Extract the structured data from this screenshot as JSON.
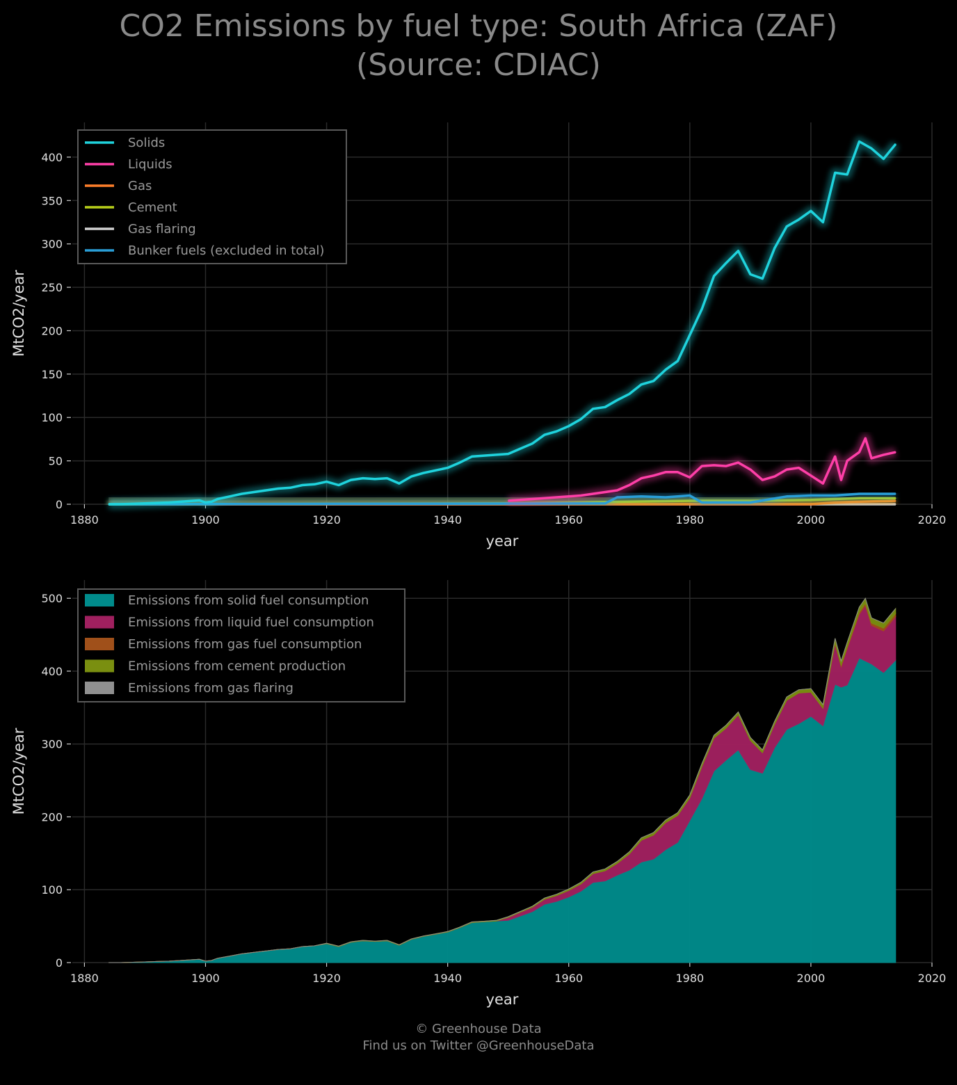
{
  "title": {
    "line1": "CO2 Emissions by fuel type: South Africa (ZAF)",
    "line2": "(Source: CDIAC)"
  },
  "footer": {
    "line1": "© Greenhouse Data",
    "line2": "Find us on Twitter @GreenhouseData"
  },
  "chart_data": [
    {
      "type": "line",
      "xlabel": "year",
      "ylabel": "MtCO2/year",
      "xlim": [
        1878,
        2020
      ],
      "ylim": [
        0,
        440
      ],
      "xticks": [
        1880,
        1900,
        1920,
        1940,
        1960,
        1980,
        2000,
        2020
      ],
      "yticks": [
        0,
        50,
        100,
        150,
        200,
        250,
        300,
        350,
        400
      ],
      "grid": true,
      "legend_position": "top-left",
      "colors": {
        "Solids": "#1fd3dd",
        "Liquids": "#ff3fa8",
        "Gas": "#ff7f2a",
        "Cement": "#b8cf1a",
        "Gas flaring": "#d0d0d0",
        "Bunker fuels (excluded in total)": "#2a9fd8"
      },
      "series": [
        {
          "name": "Solids",
          "x": [
            1884,
            1886,
            1888,
            1890,
            1892,
            1894,
            1896,
            1898,
            1899,
            1900,
            1901,
            1902,
            1904,
            1906,
            1908,
            1910,
            1912,
            1914,
            1916,
            1918,
            1920,
            1922,
            1924,
            1926,
            1928,
            1930,
            1932,
            1934,
            1936,
            1938,
            1940,
            1942,
            1944,
            1946,
            1948,
            1950,
            1952,
            1954,
            1956,
            1958,
            1960,
            1962,
            1964,
            1966,
            1968,
            1970,
            1972,
            1974,
            1976,
            1978,
            1980,
            1982,
            1984,
            1986,
            1988,
            1990,
            1992,
            1994,
            1996,
            1998,
            2000,
            2002,
            2004,
            2006,
            2008,
            2010,
            2012,
            2014
          ],
          "y": [
            0,
            0,
            0.5,
            1,
            1.5,
            2,
            3,
            4,
            4.5,
            2,
            3,
            6,
            9,
            12,
            14,
            16,
            18,
            19,
            22,
            23,
            26,
            22,
            28,
            30,
            29,
            30,
            24,
            32,
            36,
            39,
            42,
            48,
            55,
            56,
            57,
            58,
            64,
            70,
            80,
            84,
            90,
            98,
            110,
            112,
            120,
            127,
            138,
            142,
            155,
            165,
            195,
            225,
            263,
            278,
            292,
            265,
            260,
            295,
            320,
            328,
            338,
            325,
            382,
            380,
            418,
            410,
            398,
            415
          ]
        },
        {
          "name": "Liquids",
          "x": [
            1950,
            1954,
            1958,
            1962,
            1966,
            1968,
            1970,
            1972,
            1974,
            1976,
            1978,
            1980,
            1982,
            1984,
            1986,
            1988,
            1990,
            1992,
            1994,
            1996,
            1998,
            2000,
            2002,
            2004,
            2005,
            2006,
            2008,
            2009,
            2010,
            2012,
            2014
          ],
          "y": [
            4,
            6,
            8,
            10,
            14,
            16,
            22,
            30,
            33,
            37,
            37,
            31,
            44,
            45,
            44,
            48,
            40,
            28,
            32,
            40,
            42,
            33,
            24,
            55,
            28,
            50,
            60,
            76,
            53,
            57,
            60
          ]
        },
        {
          "name": "Gas",
          "x": [
            1884,
            1990,
            1992,
            2000,
            2004,
            2008,
            2014
          ],
          "y": [
            0,
            0,
            0,
            0,
            2,
            3,
            4
          ]
        },
        {
          "name": "Cement",
          "x": [
            1884,
            1920,
            1950,
            1970,
            1980,
            1990,
            2000,
            2008,
            2014
          ],
          "y": [
            0,
            0.5,
            1,
            3,
            4,
            4,
            5,
            7,
            7
          ]
        },
        {
          "name": "Gas flaring",
          "x": [
            1884,
            2014
          ],
          "y": [
            0,
            0
          ]
        },
        {
          "name": "Bunker fuels (excluded in total)",
          "x": [
            1884,
            1966,
            1968,
            1972,
            1976,
            1980,
            1982,
            1990,
            1996,
            2000,
            2004,
            2008,
            2012,
            2014
          ],
          "y": [
            0,
            1,
            8,
            9,
            8,
            10,
            2,
            2,
            9,
            10,
            10,
            12,
            12,
            12
          ]
        }
      ]
    },
    {
      "type": "area",
      "xlabel": "year",
      "ylabel": "MtCO2/year",
      "xlim": [
        1878,
        2020
      ],
      "ylim": [
        0,
        525
      ],
      "xticks": [
        1880,
        1900,
        1920,
        1940,
        1960,
        1980,
        2000,
        2020
      ],
      "yticks": [
        0,
        100,
        200,
        300,
        400,
        500
      ],
      "grid": true,
      "stacked": true,
      "legend_position": "top-left",
      "colors": {
        "Emissions from solid fuel consumption": "#008b8b",
        "Emissions from liquid fuel consumption": "#a0205f",
        "Emissions from gas fuel consumption": "#a0501a",
        "Emissions from cement production": "#7a8f10",
        "Emissions from gas flaring": "#909090"
      },
      "x": [
        1884,
        1886,
        1888,
        1890,
        1892,
        1894,
        1896,
        1898,
        1899,
        1900,
        1901,
        1902,
        1904,
        1906,
        1908,
        1910,
        1912,
        1914,
        1916,
        1918,
        1920,
        1922,
        1924,
        1926,
        1928,
        1930,
        1932,
        1934,
        1936,
        1938,
        1940,
        1942,
        1944,
        1946,
        1948,
        1950,
        1952,
        1954,
        1956,
        1958,
        1960,
        1962,
        1964,
        1966,
        1968,
        1970,
        1972,
        1974,
        1976,
        1978,
        1980,
        1982,
        1984,
        1986,
        1988,
        1990,
        1992,
        1994,
        1996,
        1998,
        2000,
        2002,
        2004,
        2005,
        2006,
        2008,
        2009,
        2010,
        2012,
        2014
      ],
      "series": [
        {
          "name": "Emissions from solid fuel consumption",
          "values": [
            0,
            0,
            0.5,
            1,
            1.5,
            2,
            3,
            4,
            4.5,
            2,
            3,
            6,
            9,
            12,
            14,
            16,
            18,
            19,
            22,
            23,
            26,
            22,
            28,
            30,
            29,
            30,
            24,
            32,
            36,
            39,
            42,
            48,
            55,
            56,
            57,
            58,
            64,
            70,
            80,
            84,
            90,
            98,
            110,
            112,
            120,
            127,
            138,
            142,
            155,
            165,
            195,
            225,
            263,
            278,
            292,
            265,
            260,
            295,
            320,
            328,
            338,
            325,
            382,
            378,
            381,
            418,
            414,
            410,
            398,
            415
          ]
        },
        {
          "name": "Emissions from liquid fuel consumption",
          "values": [
            0,
            0,
            0,
            0,
            0,
            0,
            0,
            0,
            0,
            0,
            0,
            0,
            0,
            0,
            0,
            0,
            0,
            0,
            0,
            0,
            0,
            0,
            0,
            0,
            0,
            0,
            0,
            0,
            0,
            0,
            0,
            0,
            0,
            0,
            0,
            4,
            5,
            6,
            7,
            8,
            9,
            10,
            12,
            14,
            16,
            22,
            30,
            33,
            37,
            37,
            31,
            44,
            45,
            44,
            48,
            40,
            28,
            32,
            40,
            42,
            33,
            24,
            55,
            28,
            50,
            60,
            76,
            53,
            57,
            60
          ]
        },
        {
          "name": "Emissions from gas fuel consumption",
          "values": [
            0,
            0,
            0,
            0,
            0,
            0,
            0,
            0,
            0,
            0,
            0,
            0,
            0,
            0,
            0,
            0,
            0,
            0,
            0,
            0,
            0,
            0,
            0,
            0,
            0,
            0,
            0,
            0,
            0,
            0,
            0,
            0,
            0,
            0,
            0,
            0,
            0,
            0,
            0,
            0,
            0,
            0,
            0,
            0,
            0,
            0,
            0,
            0,
            0,
            0,
            0,
            0,
            0,
            0,
            0,
            0,
            0,
            0,
            0,
            0,
            0,
            0,
            2,
            2,
            2,
            3,
            3,
            3,
            4,
            4
          ]
        },
        {
          "name": "Emissions from cement production",
          "values": [
            0,
            0,
            0,
            0,
            0,
            0,
            0,
            0,
            0,
            0,
            0,
            0,
            0,
            0,
            0,
            0,
            0,
            0,
            0,
            0,
            0.5,
            0.5,
            0.5,
            0.5,
            0.5,
            0.5,
            0.5,
            0.5,
            0.5,
            0.5,
            0.7,
            0.7,
            0.8,
            0.8,
            0.9,
            1,
            1.2,
            1.4,
            1.6,
            1.8,
            2,
            2.2,
            2.4,
            2.6,
            2.8,
            3,
            3.2,
            3.4,
            3.6,
            3.8,
            4,
            4,
            4,
            4,
            4,
            4,
            4,
            4,
            4.5,
            4.5,
            5,
            5,
            6,
            6,
            6.5,
            7,
            7,
            7,
            7,
            7
          ]
        },
        {
          "name": "Emissions from gas flaring",
          "values": [
            0,
            0,
            0,
            0,
            0,
            0,
            0,
            0,
            0,
            0,
            0,
            0,
            0,
            0,
            0,
            0,
            0,
            0,
            0,
            0,
            0,
            0,
            0,
            0,
            0,
            0,
            0,
            0,
            0,
            0,
            0,
            0,
            0,
            0,
            0,
            0,
            0,
            0,
            0,
            0,
            0,
            0,
            0,
            0,
            0,
            0,
            0,
            0,
            0,
            0,
            0,
            0,
            0,
            0,
            0,
            0,
            0,
            0,
            0,
            0,
            0,
            0,
            0,
            0,
            0,
            0,
            0,
            0,
            0,
            0
          ]
        }
      ]
    }
  ]
}
